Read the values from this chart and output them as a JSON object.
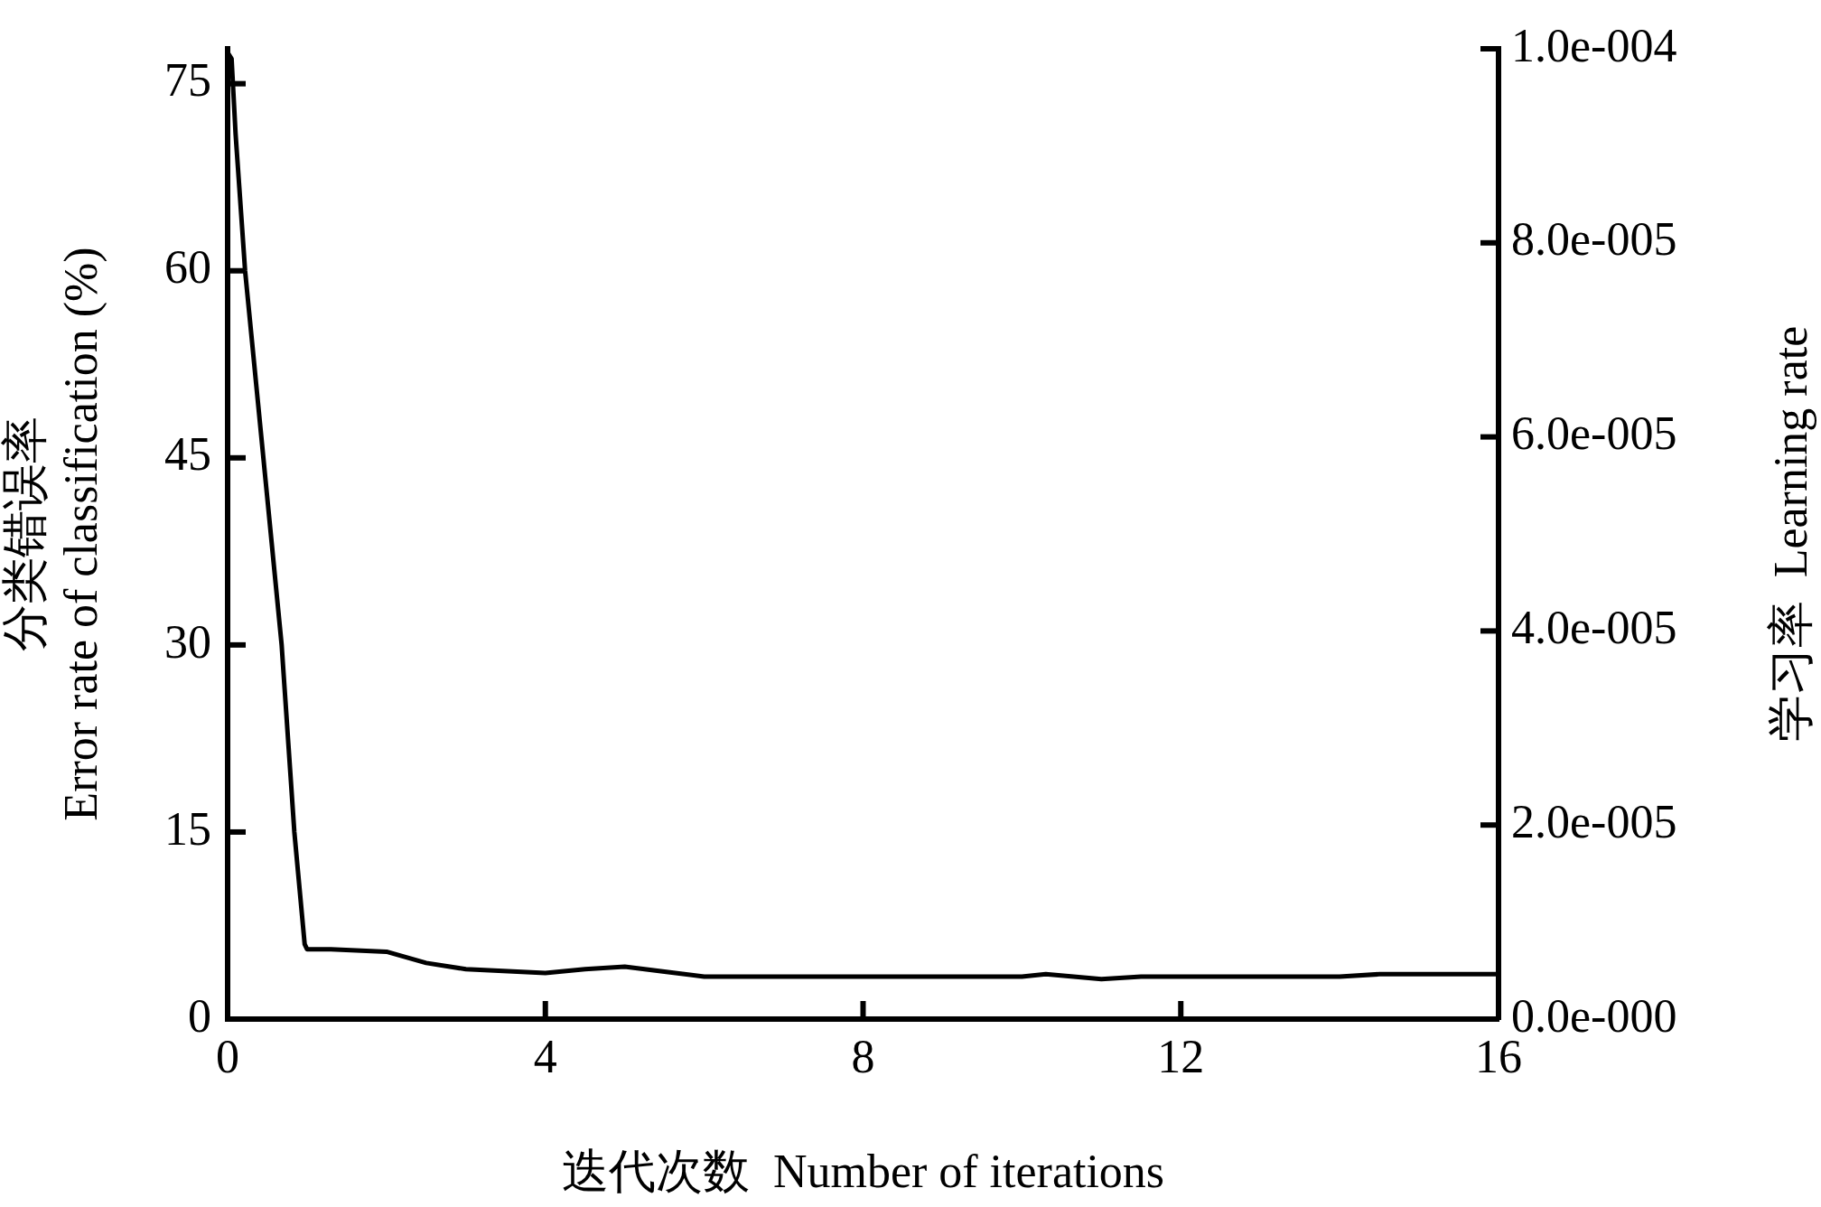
{
  "chart_data": {
    "type": "line",
    "xlabel": "迭代次数  Number of iterations",
    "ylabel": "分类错误率\nError rate of classification (%)",
    "y2label": "学习率  Learning rate",
    "xlim": [
      0,
      16
    ],
    "xticks": [
      0,
      4,
      8,
      12,
      16
    ],
    "ylim": [
      0,
      77.8
    ],
    "yticks": [
      0,
      15,
      30,
      45,
      60,
      75
    ],
    "y2lim": [
      0,
      0.0001
    ],
    "y2ticks": [
      {
        "value": 0,
        "label": "0.0e-000"
      },
      {
        "value": 2e-05,
        "label": "2.0e-005"
      },
      {
        "value": 4e-05,
        "label": "4.0e-005"
      },
      {
        "value": 6e-05,
        "label": "6.0e-005"
      },
      {
        "value": 8e-05,
        "label": "8.0e-005"
      },
      {
        "value": 0.0001,
        "label": "1.0e-004"
      }
    ],
    "series": [
      {
        "color": "#000000",
        "x": [
          0,
          0.05,
          0.1,
          0.22,
          0.45,
          0.68,
          0.84,
          0.97,
          1.0,
          1.3,
          2,
          2.5,
          3,
          4,
          4.5,
          5,
          5.5,
          6,
          8,
          10,
          10.3,
          11,
          11.5,
          12,
          14,
          14.5,
          16
        ],
        "values": [
          77.5,
          77,
          71,
          60,
          45,
          30,
          15,
          6,
          5.6,
          5.6,
          5.4,
          4.5,
          4.0,
          3.7,
          4.0,
          4.2,
          3.8,
          3.4,
          3.4,
          3.4,
          3.6,
          3.2,
          3.4,
          3.4,
          3.4,
          3.6,
          3.6
        ]
      }
    ]
  }
}
